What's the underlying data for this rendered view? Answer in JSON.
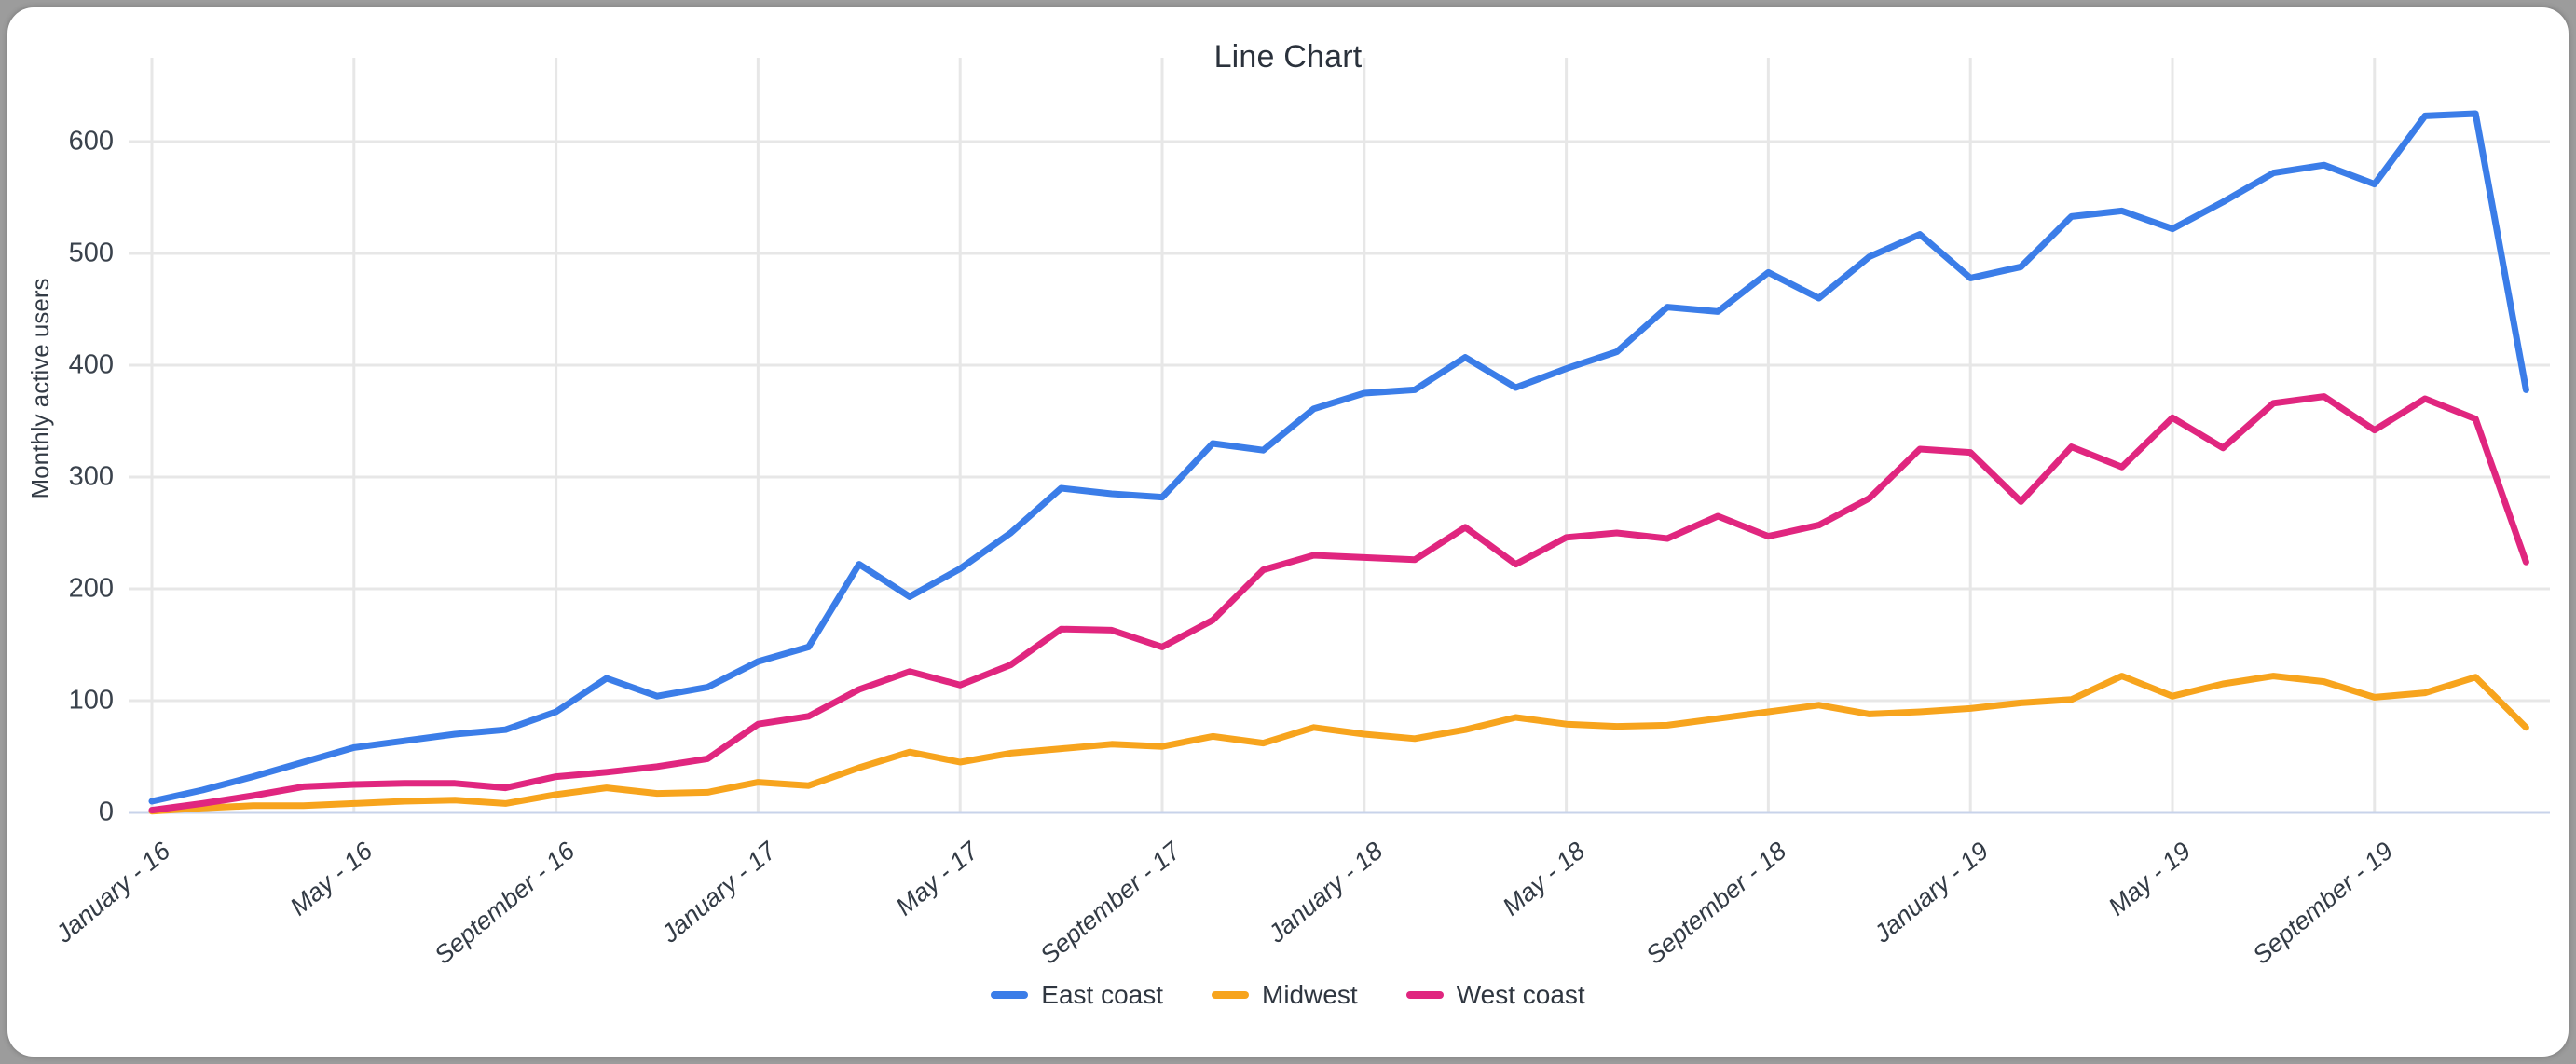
{
  "chart_data": {
    "type": "line",
    "title": "Line Chart",
    "ylabel": "Monthly active users",
    "xlabel": "",
    "grid": true,
    "legend_position": "bottom",
    "ylim": [
      0,
      650
    ],
    "y_ticks": [
      0,
      100,
      200,
      300,
      400,
      500,
      600
    ],
    "n_points": 48,
    "x_tick_labels": [
      "January - 16",
      "May - 16",
      "September - 16",
      "January - 17",
      "May - 17",
      "September - 17",
      "January - 18",
      "May - 18",
      "September - 18",
      "January - 19",
      "May - 19",
      "September - 19"
    ],
    "x_tick_positions": [
      0,
      4,
      8,
      12,
      16,
      20,
      24,
      28,
      32,
      36,
      40,
      44
    ],
    "series": [
      {
        "name": "East coast",
        "color": "#3b7de8",
        "values": [
          10,
          20,
          32,
          45,
          58,
          64,
          70,
          74,
          90,
          120,
          104,
          112,
          135,
          148,
          222,
          193,
          218,
          250,
          290,
          285,
          282,
          330,
          324,
          361,
          375,
          378,
          407,
          380,
          397,
          412,
          452,
          448,
          483,
          460,
          497,
          517,
          478,
          488,
          533,
          538,
          522,
          546,
          572,
          579,
          562,
          623,
          625,
          378
        ]
      },
      {
        "name": "Midwest",
        "color": "#f7a41d",
        "values": [
          1,
          4,
          6,
          6,
          8,
          10,
          11,
          8,
          16,
          22,
          17,
          18,
          27,
          24,
          40,
          54,
          45,
          53,
          57,
          61,
          59,
          68,
          62,
          76,
          70,
          66,
          74,
          85,
          79,
          77,
          78,
          84,
          90,
          96,
          88,
          90,
          93,
          98,
          101,
          122,
          104,
          115,
          122,
          117,
          103,
          107,
          121,
          76
        ]
      },
      {
        "name": "West coast",
        "color": "#e0267f",
        "values": [
          2,
          8,
          15,
          23,
          25,
          26,
          26,
          22,
          32,
          36,
          41,
          48,
          79,
          86,
          110,
          126,
          114,
          132,
          164,
          163,
          148,
          172,
          217,
          230,
          228,
          226,
          255,
          222,
          246,
          250,
          245,
          265,
          247,
          257,
          281,
          325,
          322,
          278,
          327,
          309,
          353,
          326,
          366,
          372,
          342,
          370,
          352,
          224
        ]
      }
    ]
  },
  "colors": {
    "grid": "#e7e7e7",
    "baseline": "#c8d3ea",
    "frame": "#9c9c9c",
    "card": "#ffffff",
    "title_text": "#2b323c",
    "tick_text": "#3a424c"
  }
}
